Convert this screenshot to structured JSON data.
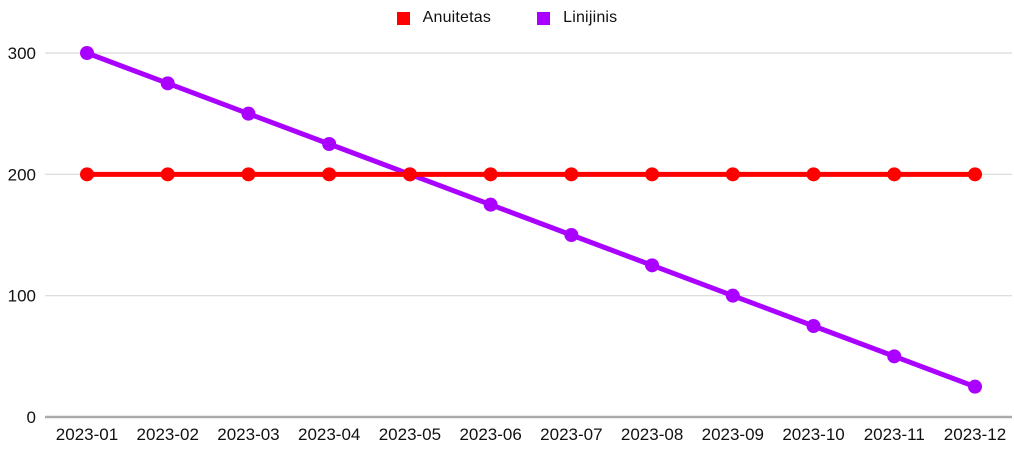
{
  "chart_data": {
    "type": "line",
    "categories": [
      "2023-01",
      "2023-02",
      "2023-03",
      "2023-04",
      "2023-05",
      "2023-06",
      "2023-07",
      "2023-08",
      "2023-09",
      "2023-10",
      "2023-11",
      "2023-12"
    ],
    "series": [
      {
        "name": "Anuitetas",
        "color": "#ff0000",
        "values": [
          200,
          200,
          200,
          200,
          200,
          200,
          200,
          200,
          200,
          200,
          200,
          200
        ]
      },
      {
        "name": "Linijinis",
        "color": "#aa00ff",
        "values": [
          300,
          275,
          250,
          225,
          200,
          175,
          150,
          125,
          100,
          75,
          50,
          25
        ]
      }
    ],
    "title": "",
    "xlabel": "",
    "ylabel": "",
    "ylim": [
      0,
      310
    ],
    "yticks": [
      0,
      100,
      200,
      300
    ],
    "legend_position": "top-center",
    "grid": "horizontal",
    "line_width": 5,
    "point_radius": 7
  },
  "colors": {
    "background": "#ffffff",
    "gridline": "#d9d9d9",
    "zero_line": "#ababab",
    "tick_text": "#111111"
  }
}
